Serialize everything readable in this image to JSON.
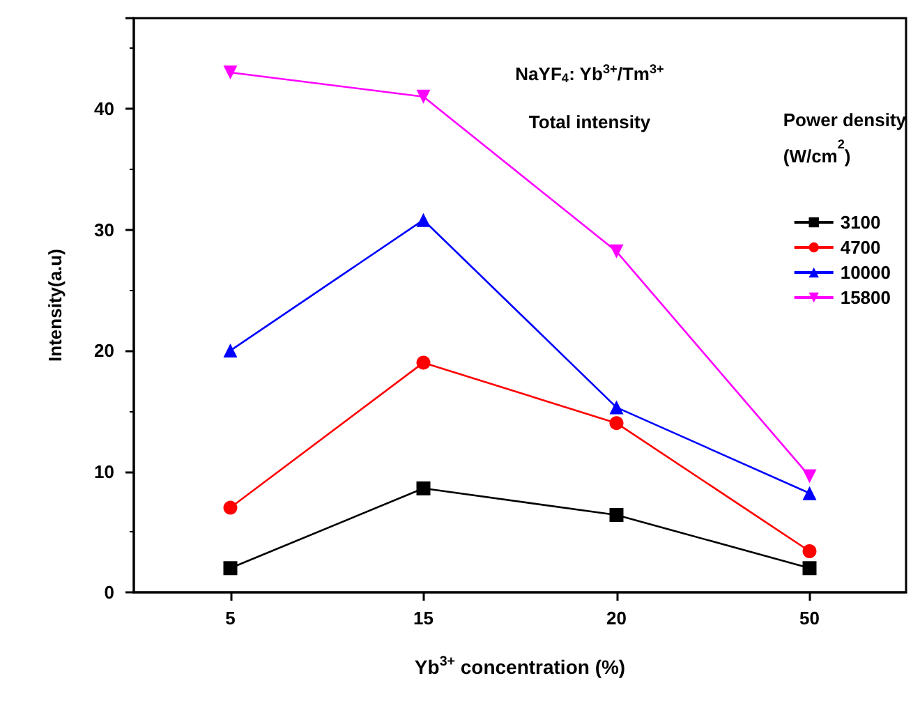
{
  "chart_data": {
    "type": "line",
    "title": "NaYF$_{4}$: Yb$^{3+}$/Tm$^{3+}$",
    "subtitle": "Total intensity",
    "xlabel": "Yb$^{3+}$ concentration (%)",
    "ylabel": "Intensity(a.u)",
    "legend_title": "Power density (W/cm$^{2}$)",
    "categories": [
      "5",
      "15",
      "20",
      "50"
    ],
    "ylim": [
      0,
      47.5
    ],
    "yticks": [
      0,
      10,
      20,
      30,
      40
    ],
    "grid": false,
    "legend": "right",
    "series": [
      {
        "name": "3100",
        "color": "#000000",
        "marker": "square",
        "values": [
          2.0,
          8.6,
          6.4,
          2.0
        ]
      },
      {
        "name": "4700",
        "color": "#ff0000",
        "marker": "circle",
        "values": [
          7.0,
          19.0,
          14.0,
          3.4
        ]
      },
      {
        "name": "10000",
        "color": "#0000ff",
        "marker": "triangle",
        "values": [
          20.0,
          30.8,
          15.3,
          8.2
        ]
      },
      {
        "name": "15800",
        "color": "#ff00ff",
        "marker": "triangle-down",
        "values": [
          43.0,
          41.0,
          28.2,
          9.6
        ]
      }
    ]
  }
}
